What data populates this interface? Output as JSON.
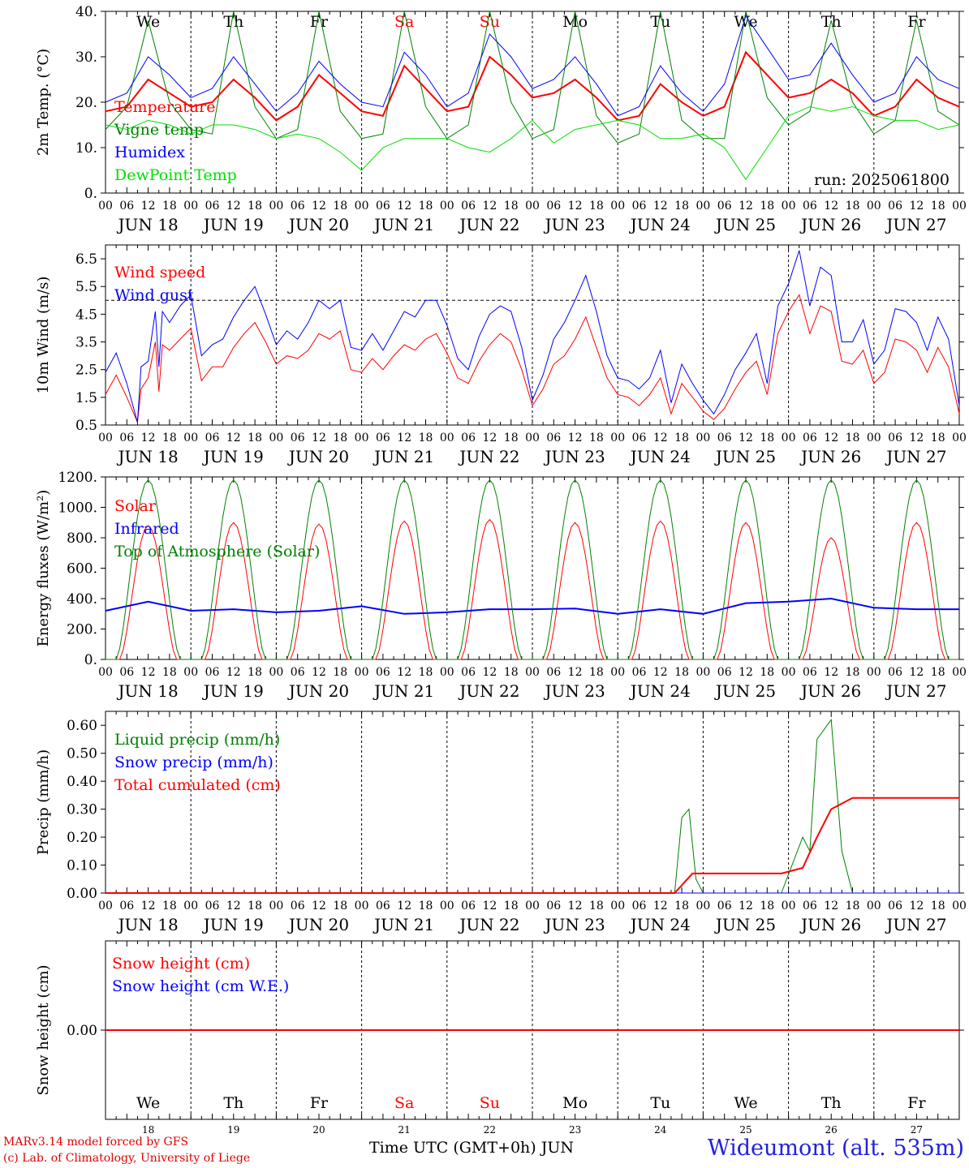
{
  "run_label": "run: 2025061800",
  "day_names": [
    "We",
    "Th",
    "Fr",
    "Sa",
    "Su",
    "Mo",
    "Tu",
    "We",
    "Th",
    "Fr"
  ],
  "day_colors": [
    "#000000",
    "#000000",
    "#000000",
    "#ff0000",
    "#ff0000",
    "#000000",
    "#000000",
    "#000000",
    "#000000",
    "#000000"
  ],
  "date_labels": [
    "JUN 18",
    "JUN 19",
    "JUN 20",
    "JUN 21",
    "JUN 22",
    "JUN 23",
    "JUN 24",
    "JUN 25",
    "JUN 26",
    "JUN 27"
  ],
  "hour_labels": [
    "00",
    "06",
    "12",
    "18"
  ],
  "day_numbers": [
    "18",
    "19",
    "20",
    "21",
    "22",
    "23",
    "24",
    "25",
    "26",
    "27"
  ],
  "footer": {
    "model": "MARv3.14 model forced by GFS",
    "lab": "(c) Lab. of Climatology, University of Liege",
    "time_axis": "Time UTC (GMT+0h) JUN",
    "station": "Wideumont (alt. 535m)"
  },
  "chart_data": [
    {
      "type": "line",
      "ylabel": "2m Temp. (°C)",
      "ylim": [
        0,
        40
      ],
      "yticks": [
        "0.",
        "10.",
        "20.",
        "30.",
        "40."
      ],
      "x_unit": "hours since JUN 18 00 UTC",
      "series": [
        {
          "name": "Temperature",
          "color": "#ff0000",
          "x": [
            0,
            6,
            12,
            18,
            24,
            30,
            36,
            42,
            48,
            54,
            60,
            66,
            72,
            78,
            84,
            90,
            96,
            102,
            108,
            114,
            120,
            126,
            132,
            138,
            144,
            150,
            156,
            162,
            168,
            174,
            180,
            186,
            192,
            198,
            204,
            210,
            216,
            222,
            228,
            234,
            240
          ],
          "values": [
            18,
            19,
            25,
            22,
            19,
            20,
            25,
            21,
            16,
            19,
            26,
            22,
            18,
            17,
            28,
            23,
            18,
            19,
            30,
            26,
            21,
            22,
            25,
            21,
            16,
            17,
            24,
            20,
            17,
            19,
            31,
            26,
            21,
            22,
            25,
            22,
            17,
            19,
            25,
            21,
            19
          ]
        },
        {
          "name": "Vigne temp",
          "color": "#008000",
          "x": [
            0,
            6,
            12,
            18,
            24,
            30,
            36,
            42,
            48,
            54,
            60,
            66,
            72,
            78,
            84,
            90,
            96,
            102,
            108,
            114,
            120,
            126,
            132,
            138,
            144,
            150,
            156,
            162,
            168,
            174,
            180,
            186,
            192,
            198,
            204,
            210,
            216,
            222,
            228,
            234,
            240
          ],
          "values": [
            14,
            19,
            38,
            20,
            14,
            13,
            40,
            19,
            12,
            14,
            40,
            18,
            12,
            13,
            40,
            19,
            12,
            15,
            40,
            20,
            12,
            14,
            40,
            17,
            11,
            13,
            40,
            16,
            12,
            12,
            40,
            21,
            15,
            18,
            38,
            20,
            13,
            16,
            38,
            18,
            15
          ]
        },
        {
          "name": "Humidex",
          "color": "#0000ff",
          "x": [
            0,
            6,
            12,
            18,
            24,
            30,
            36,
            42,
            48,
            54,
            60,
            66,
            72,
            78,
            84,
            90,
            96,
            102,
            108,
            114,
            120,
            126,
            132,
            138,
            144,
            150,
            156,
            162,
            168,
            174,
            180,
            186,
            192,
            198,
            204,
            210,
            216,
            222,
            228,
            234,
            240
          ],
          "values": [
            20,
            22,
            30,
            26,
            21,
            23,
            30,
            24,
            18,
            22,
            29,
            24,
            20,
            19,
            31,
            26,
            19,
            22,
            35,
            30,
            23,
            25,
            30,
            24,
            17,
            19,
            28,
            22,
            18,
            24,
            39,
            32,
            25,
            26,
            33,
            26,
            20,
            22,
            30,
            25,
            23
          ]
        },
        {
          "name": "DewPoint Temp",
          "color": "#00e000",
          "x": [
            0,
            6,
            12,
            18,
            24,
            30,
            36,
            42,
            48,
            54,
            60,
            66,
            72,
            78,
            84,
            90,
            96,
            102,
            108,
            114,
            120,
            126,
            132,
            138,
            144,
            150,
            156,
            162,
            168,
            174,
            180,
            186,
            192,
            198,
            204,
            210,
            216,
            222,
            228,
            234,
            240
          ],
          "values": [
            15,
            14,
            16,
            15,
            13,
            15,
            15,
            14,
            12,
            13,
            12,
            9,
            5,
            10,
            12,
            12,
            12,
            10,
            9,
            12,
            16,
            11,
            14,
            15,
            16,
            15,
            12,
            12,
            13,
            10,
            3,
            10,
            17,
            19,
            18,
            19,
            17,
            16,
            16,
            14,
            15
          ]
        }
      ]
    },
    {
      "type": "line",
      "ylabel": "10m Wind (m/s)",
      "ylim": [
        0.5,
        7.0
      ],
      "yticks": [
        "0.5",
        "1.5",
        "2.5",
        "3.5",
        "4.5",
        "5.5",
        "6.5"
      ],
      "ref_line": 5.0,
      "x_unit": "hours since JUN 18 00 UTC",
      "series": [
        {
          "name": "Wind speed",
          "color": "#ff0000",
          "x": [
            0,
            3,
            6,
            9,
            10,
            12,
            14,
            15,
            16,
            18,
            21,
            24,
            27,
            30,
            33,
            36,
            39,
            42,
            45,
            48,
            51,
            54,
            57,
            60,
            63,
            66,
            69,
            72,
            75,
            78,
            81,
            84,
            87,
            90,
            93,
            96,
            99,
            102,
            105,
            108,
            111,
            114,
            117,
            120,
            123,
            126,
            129,
            132,
            135,
            138,
            141,
            144,
            147,
            150,
            153,
            156,
            159,
            162,
            165,
            168,
            171,
            174,
            177,
            180,
            183,
            186,
            189,
            192,
            195,
            198,
            201,
            204,
            207,
            210,
            213,
            216,
            219,
            222,
            225,
            228,
            231,
            234,
            237,
            240
          ],
          "values": [
            1.6,
            2.3,
            1.5,
            0.6,
            1.8,
            2.2,
            3.5,
            1.7,
            3.4,
            3.2,
            3.6,
            4.0,
            2.1,
            2.6,
            2.6,
            3.3,
            3.8,
            4.2,
            3.5,
            2.7,
            3.0,
            2.9,
            3.2,
            3.8,
            3.6,
            3.9,
            2.5,
            2.4,
            2.9,
            2.5,
            3.0,
            3.4,
            3.2,
            3.6,
            3.8,
            3.1,
            2.2,
            2.0,
            2.8,
            3.4,
            3.8,
            3.5,
            2.5,
            1.2,
            1.8,
            2.7,
            3.0,
            3.6,
            4.4,
            3.3,
            2.2,
            1.6,
            1.5,
            1.2,
            1.6,
            2.2,
            0.9,
            2.0,
            1.5,
            1.0,
            0.7,
            1.1,
            1.8,
            2.4,
            2.8,
            1.6,
            3.8,
            4.6,
            5.2,
            3.8,
            4.8,
            4.6,
            2.8,
            2.7,
            3.2,
            2.0,
            2.4,
            3.6,
            3.5,
            3.2,
            2.4,
            3.3,
            2.6,
            0.9
          ]
        },
        {
          "name": "Wind gust",
          "color": "#0000ff",
          "x": [
            0,
            3,
            6,
            9,
            10,
            12,
            14,
            15,
            16,
            18,
            21,
            24,
            27,
            30,
            33,
            36,
            39,
            42,
            45,
            48,
            51,
            54,
            57,
            60,
            63,
            66,
            69,
            72,
            75,
            78,
            81,
            84,
            87,
            90,
            93,
            96,
            99,
            102,
            105,
            108,
            111,
            114,
            117,
            120,
            123,
            126,
            129,
            132,
            135,
            138,
            141,
            144,
            147,
            150,
            153,
            156,
            159,
            162,
            165,
            168,
            171,
            174,
            177,
            180,
            183,
            186,
            189,
            192,
            195,
            198,
            201,
            204,
            207,
            210,
            213,
            216,
            219,
            222,
            225,
            228,
            231,
            234,
            237,
            240
          ],
          "values": [
            2.4,
            3.1,
            2.0,
            0.6,
            2.6,
            2.8,
            4.6,
            2.6,
            4.6,
            4.2,
            4.8,
            5.2,
            3.0,
            3.4,
            3.6,
            4.4,
            5.0,
            5.5,
            4.5,
            3.4,
            3.9,
            3.6,
            4.2,
            5.0,
            4.7,
            5.0,
            3.3,
            3.2,
            3.8,
            3.2,
            3.9,
            4.6,
            4.4,
            5.0,
            5.0,
            4.1,
            2.9,
            2.5,
            3.7,
            4.5,
            4.8,
            4.6,
            3.3,
            1.4,
            2.3,
            3.6,
            4.2,
            5.0,
            5.9,
            4.6,
            3.0,
            2.2,
            2.1,
            1.8,
            2.2,
            3.2,
            1.3,
            2.7,
            2.0,
            1.4,
            0.9,
            1.6,
            2.5,
            3.1,
            3.8,
            2.0,
            4.8,
            5.6,
            6.8,
            4.8,
            6.2,
            5.9,
            3.5,
            3.5,
            4.3,
            2.7,
            3.2,
            4.7,
            4.6,
            4.2,
            3.2,
            4.4,
            3.6,
            1.2
          ]
        }
      ]
    },
    {
      "type": "line",
      "ylabel": "Energy fluxes (W/m²)",
      "ylim": [
        0,
        1200
      ],
      "yticks": [
        "0.",
        "200.",
        "400.",
        "600.",
        "800.",
        "1000.",
        "1200."
      ],
      "x_unit": "hours since JUN 18 00 UTC",
      "day_peaks": {
        "solar": [
          880,
          900,
          890,
          910,
          920,
          900,
          910,
          900,
          800,
          900
        ],
        "top_of_atmosphere": [
          1180,
          1180,
          1180,
          1180,
          1180,
          1180,
          1180,
          1180,
          1180,
          1180
        ]
      },
      "series": [
        {
          "name": "Solar",
          "color": "#ff0000"
        },
        {
          "name": "Infrared",
          "color": "#0000ff",
          "x": [
            0,
            12,
            24,
            36,
            48,
            60,
            72,
            84,
            96,
            108,
            120,
            132,
            144,
            156,
            168,
            180,
            192,
            204,
            216,
            228,
            240
          ],
          "values": [
            320,
            380,
            320,
            330,
            310,
            320,
            350,
            300,
            310,
            330,
            330,
            335,
            300,
            330,
            300,
            370,
            380,
            400,
            340,
            330,
            330
          ]
        },
        {
          "name": "Top of Atmosphere (Solar)",
          "color": "#008000"
        }
      ]
    },
    {
      "type": "line",
      "ylabel": "Precip (mm/h)",
      "ylim": [
        0,
        0.65
      ],
      "yticks": [
        "0.00",
        "0.10",
        "0.20",
        "0.30",
        "0.40",
        "0.50",
        "0.60"
      ],
      "x_unit": "hours since JUN 18 00 UTC",
      "series": [
        {
          "name": "Liquid precip (mm/h)",
          "color": "#008000",
          "x": [
            0,
            160,
            162,
            164,
            166,
            168,
            190,
            196,
            198,
            200,
            204,
            207,
            210,
            240
          ],
          "values": [
            0,
            0,
            0.27,
            0.3,
            0.05,
            0,
            0,
            0.2,
            0.15,
            0.55,
            0.62,
            0.15,
            0,
            0
          ]
        },
        {
          "name": "Snow precip (mm/h)",
          "color": "#0000ff",
          "x": [
            0,
            240
          ],
          "values": [
            0,
            0
          ]
        },
        {
          "name": "Total cumulated (cm)",
          "color": "#ff0000",
          "x": [
            0,
            160,
            165,
            190,
            196,
            200,
            204,
            210,
            240
          ],
          "values": [
            0,
            0,
            0.07,
            0.07,
            0.09,
            0.2,
            0.3,
            0.34,
            0.34
          ]
        }
      ]
    },
    {
      "type": "line",
      "ylabel": "Snow height (cm)",
      "yticks": [
        "0.00"
      ],
      "series": [
        {
          "name": "Snow height (cm)",
          "color": "#ff0000",
          "x": [
            0,
            240
          ],
          "values": [
            0,
            0
          ]
        },
        {
          "name": "Snow height (cm W.E.)",
          "color": "#0000ff"
        }
      ]
    }
  ]
}
